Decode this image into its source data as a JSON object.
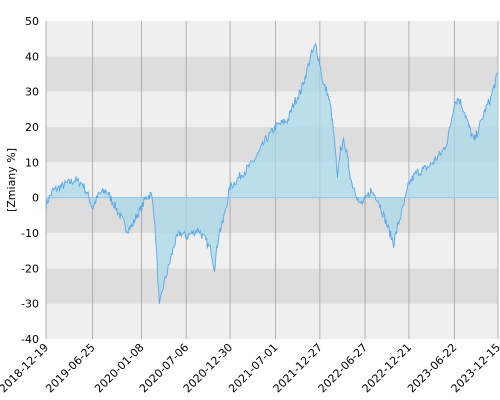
{
  "chart_data": {
    "type": "area",
    "title": "",
    "xlabel": "",
    "ylabel": "[Zmiany %]",
    "ylim": [
      -40,
      50
    ],
    "y_ticks": [
      50,
      40,
      30,
      20,
      10,
      0,
      -10,
      -20,
      -30,
      -40
    ],
    "x_range": [
      "2018-12-19",
      "2023-12-15"
    ],
    "x_ticks": [
      "2018-12-19",
      "2019-06-25",
      "2020-01-08",
      "2020-07-06",
      "2020-12-30",
      "2021-07-01",
      "2021-12-27",
      "2022-06-27",
      "2022-12-21",
      "2023-06-22",
      "2023-12-15"
    ],
    "grid": true,
    "colors": {
      "line": "#5aa7e6",
      "fill": "#a9d8ea",
      "band_light": "#efefef",
      "band_dark": "#dddddd",
      "vgrid": "#a0a0a0",
      "zero_line": "#8fc8e8"
    },
    "series": [
      {
        "points": [
          [
            "2018-12-19",
            -2
          ],
          [
            "2019-01-15",
            2
          ],
          [
            "2019-02-15",
            3
          ],
          [
            "2019-03-15",
            4
          ],
          [
            "2019-04-15",
            5
          ],
          [
            "2019-05-15",
            4
          ],
          [
            "2019-06-10",
            0
          ],
          [
            "2019-06-25",
            -3
          ],
          [
            "2019-07-20",
            1
          ],
          [
            "2019-08-20",
            2
          ],
          [
            "2019-09-20",
            -2
          ],
          [
            "2019-10-20",
            -6
          ],
          [
            "2019-11-10",
            -9
          ],
          [
            "2019-12-01",
            -8
          ],
          [
            "2019-12-20",
            -5
          ],
          [
            "2020-01-08",
            -3
          ],
          [
            "2020-01-25",
            0
          ],
          [
            "2020-02-15",
            1
          ],
          [
            "2020-02-25",
            -2
          ],
          [
            "2020-03-08",
            -15
          ],
          [
            "2020-03-20",
            -31
          ],
          [
            "2020-04-05",
            -25
          ],
          [
            "2020-04-25",
            -20
          ],
          [
            "2020-05-20",
            -13
          ],
          [
            "2020-06-10",
            -10
          ],
          [
            "2020-07-06",
            -11
          ],
          [
            "2020-08-01",
            -10
          ],
          [
            "2020-08-25",
            -9
          ],
          [
            "2020-09-20",
            -12
          ],
          [
            "2020-10-15",
            -15
          ],
          [
            "2020-10-28",
            -20
          ],
          [
            "2020-11-15",
            -10
          ],
          [
            "2020-12-01",
            -7
          ],
          [
            "2020-12-30",
            3
          ],
          [
            "2021-01-25",
            5
          ],
          [
            "2021-02-20",
            7
          ],
          [
            "2021-03-20",
            9
          ],
          [
            "2021-04-20",
            12
          ],
          [
            "2021-05-20",
            16
          ],
          [
            "2021-07-01",
            20
          ],
          [
            "2021-07-25",
            21
          ],
          [
            "2021-08-20",
            22
          ],
          [
            "2021-09-15",
            27
          ],
          [
            "2021-10-10",
            30
          ],
          [
            "2021-11-01",
            35
          ],
          [
            "2021-11-20",
            40
          ],
          [
            "2021-12-10",
            43
          ],
          [
            "2021-12-27",
            38
          ],
          [
            "2022-01-10",
            32
          ],
          [
            "2022-01-25",
            30
          ],
          [
            "2022-02-10",
            25
          ],
          [
            "2022-02-25",
            15
          ],
          [
            "2022-03-08",
            5
          ],
          [
            "2022-03-20",
            14
          ],
          [
            "2022-04-05",
            16
          ],
          [
            "2022-04-20",
            10
          ],
          [
            "2022-05-05",
            4
          ],
          [
            "2022-05-20",
            2
          ],
          [
            "2022-06-05",
            -2
          ],
          [
            "2022-06-27",
            -1
          ],
          [
            "2022-07-20",
            2
          ],
          [
            "2022-08-15",
            0
          ],
          [
            "2022-09-10",
            -5
          ],
          [
            "2022-10-05",
            -10
          ],
          [
            "2022-10-20",
            -13
          ],
          [
            "2022-11-10",
            -7
          ],
          [
            "2022-12-01",
            -2
          ],
          [
            "2022-12-21",
            4
          ],
          [
            "2023-01-20",
            7
          ],
          [
            "2023-02-20",
            8
          ],
          [
            "2023-03-15",
            9
          ],
          [
            "2023-04-10",
            11
          ],
          [
            "2023-05-05",
            13
          ],
          [
            "2023-05-25",
            16
          ],
          [
            "2023-06-10",
            22
          ],
          [
            "2023-06-22",
            27
          ],
          [
            "2023-07-10",
            28
          ],
          [
            "2023-07-30",
            25
          ],
          [
            "2023-08-20",
            20
          ],
          [
            "2023-09-10",
            16
          ],
          [
            "2023-10-01",
            20
          ],
          [
            "2023-10-25",
            25
          ],
          [
            "2023-11-15",
            28
          ],
          [
            "2023-12-05",
            33
          ],
          [
            "2023-12-15",
            35
          ]
        ]
      }
    ]
  }
}
